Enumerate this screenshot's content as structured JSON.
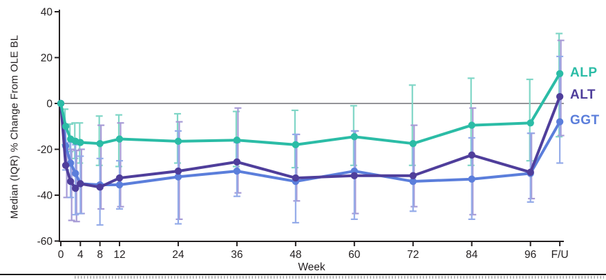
{
  "figure": {
    "y_axis_title": "Median (IQR) % Change From OLE BL",
    "x_axis_title": "Week"
  },
  "chart_data": {
    "type": "line",
    "title": "",
    "xlabel": "Week",
    "ylabel": "Median (IQR) % Change From OLE BL",
    "ylim": [
      -60,
      40
    ],
    "grid": false,
    "legend_position": "right",
    "baseline_reference_y": 0,
    "y_ticks": [
      40,
      20,
      0,
      -20,
      -40,
      -60
    ],
    "x_tick_labels": [
      "0",
      "4",
      "8",
      "12",
      "24",
      "36",
      "48",
      "60",
      "72",
      "84",
      "96",
      "F/U"
    ],
    "x_tick_weeks": [
      0,
      4,
      8,
      12,
      24,
      36,
      48,
      60,
      72,
      84,
      96,
      102
    ],
    "x_point_labels": [
      "0",
      "1",
      "2",
      "3",
      "4",
      "8",
      "12",
      "24",
      "36",
      "48",
      "60",
      "72",
      "84",
      "96",
      "F/U"
    ],
    "x_weeks": [
      0,
      1,
      2,
      3,
      4,
      8,
      12,
      24,
      36,
      48,
      60,
      72,
      84,
      96,
      102
    ],
    "series": [
      {
        "name": "ALP",
        "color": "#2bbca6",
        "error_color": "#7fd6c6",
        "values": [
          0,
          -10,
          -15.5,
          -16.5,
          -17,
          -17.5,
          -15.5,
          -16.5,
          -16,
          -18,
          -14.5,
          -17.5,
          -9.5,
          -8.5,
          13
        ],
        "iqr_low": [
          0,
          -18,
          -21,
          -24,
          -26,
          -27,
          -27.5,
          -26,
          -27.5,
          -28,
          -27,
          -27,
          -27,
          -25,
          -14.5
        ],
        "iqr_high": [
          0,
          -2.5,
          -9,
          -8.5,
          -8.5,
          -5.5,
          -5,
          -4.5,
          -3.5,
          -3,
          -1,
          8,
          11,
          10.5,
          30.5
        ]
      },
      {
        "name": "ALT",
        "color": "#4f3e9b",
        "error_color": "#a79bd6",
        "values": [
          0,
          -27,
          -34,
          -37,
          -35,
          -36.5,
          -32.5,
          -29.5,
          -25.5,
          -32.5,
          -31.5,
          -31.5,
          -22.5,
          -30,
          3
        ],
        "iqr_low": [
          0,
          -41,
          -51,
          -51.5,
          -48,
          -46,
          -45,
          -50.5,
          -39,
          -42.5,
          -48,
          -45,
          -48.5,
          -41.5,
          -14
        ],
        "iqr_high": [
          0,
          -20,
          -20,
          -20.5,
          -20,
          -9.5,
          -8.5,
          -8,
          -2,
          -13.5,
          -12,
          -9.5,
          -2,
          -13,
          27.5
        ]
      },
      {
        "name": "GGT",
        "color": "#5b7edb",
        "error_color": "#94abe9",
        "values": [
          0,
          -18.5,
          -26,
          -30.5,
          -35,
          -35.5,
          -35.5,
          -32,
          -29.5,
          -34,
          -29.5,
          -34,
          -33,
          -30.5,
          -8
        ],
        "iqr_low": [
          0,
          -29,
          -41,
          -48.5,
          -48,
          -53,
          -46,
          -52.5,
          -40.5,
          -52,
          -50.5,
          -47,
          -50.5,
          -43,
          -26
        ],
        "iqr_high": [
          0,
          -10,
          -17,
          -18,
          -23,
          -24,
          -25,
          -12,
          -17,
          -13.5,
          -12,
          -17,
          -15,
          -13,
          20.5
        ]
      }
    ]
  }
}
